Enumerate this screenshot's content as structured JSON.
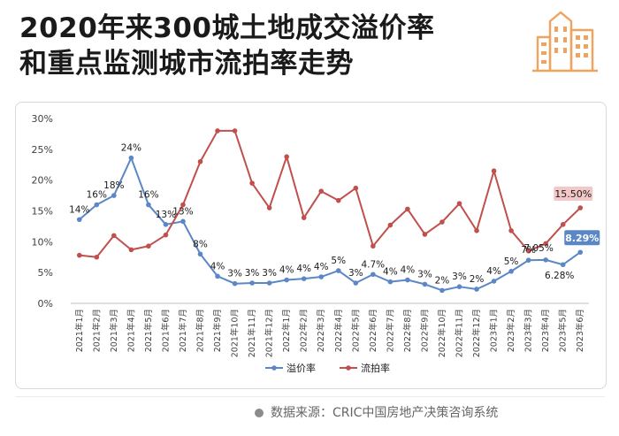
{
  "title": {
    "line1": "2020年来300城土地成交溢价率",
    "line2": "和重点监测城市流拍率走势"
  },
  "logo_icon": "city-buildings-icon",
  "colors": {
    "premium": "#5b87c6",
    "flow": "#c0504d",
    "logo": "#f0a35e",
    "axis_text": "#404040",
    "grid": "#e6e6e6",
    "highlight_premium_bg": "#5b87c6",
    "highlight_flow_bg": "#f2c9c8"
  },
  "source_text": "数据来源：CRIC中国房地产决策咨询系统",
  "chart_data": {
    "type": "line",
    "title": "",
    "xlabel": "",
    "ylabel": "",
    "ylim": [
      0,
      30
    ],
    "yticks": [
      "0%",
      "5%",
      "10%",
      "15%",
      "20%",
      "25%",
      "30%"
    ],
    "grid": false,
    "legend_position": "bottom",
    "categories": [
      "2021年1月",
      "2021年2月",
      "2021年3月",
      "2021年4月",
      "2021年5月",
      "2021年6月",
      "2021年7月",
      "2021年8月",
      "2021年9月",
      "2021年10月",
      "2021年11月",
      "2021年12月",
      "2022年1月",
      "2022年2月",
      "2022年3月",
      "2022年4月",
      "2022年5月",
      "2022年6月",
      "2022年7月",
      "2022年8月",
      "2022年9月",
      "2022年10月",
      "2022年11月",
      "2022年12月",
      "2023年1月",
      "2023年2月",
      "2023年3月",
      "2023年4月",
      "2023年5月",
      "2023年6月"
    ],
    "series": [
      {
        "name": "溢价率",
        "values": [
          13.6,
          16.0,
          17.5,
          23.6,
          16.0,
          12.8,
          13.3,
          8.0,
          4.4,
          3.2,
          3.3,
          3.3,
          3.8,
          4.0,
          4.3,
          5.3,
          3.3,
          4.7,
          3.5,
          3.8,
          3.1,
          2.1,
          2.7,
          2.3,
          3.6,
          5.2,
          7.0,
          7.05,
          6.28,
          8.29
        ],
        "labels": [
          "14%",
          "16%",
          "18%",
          "24%",
          "16%",
          "13%",
          "13%",
          "8%",
          "4%",
          "3%",
          "3%",
          "3%",
          "4%",
          "4%",
          "4%",
          "5%",
          "3%",
          "4.7%",
          "4%",
          "4%",
          "3%",
          "2%",
          "3%",
          "2%",
          "4%",
          "5%",
          "7%",
          "7.05%",
          "6.28%",
          "8.29%"
        ]
      },
      {
        "name": "流拍率",
        "values": [
          7.8,
          7.5,
          11.0,
          8.7,
          9.3,
          11.1,
          16.0,
          23.0,
          28.0,
          28.0,
          19.5,
          15.5,
          23.8,
          13.9,
          18.2,
          16.7,
          18.7,
          9.3,
          12.7,
          15.3,
          11.2,
          13.2,
          16.2,
          11.8,
          21.5,
          11.8,
          8.5,
          9.7,
          12.8,
          15.5
        ],
        "labels": [
          "",
          "",
          "",
          "",
          "",
          "",
          "",
          "",
          "",
          "",
          "",
          "",
          "",
          "",
          "",
          "",
          "",
          "",
          "",
          "",
          "",
          "",
          "",
          "",
          "",
          "",
          "",
          "",
          "",
          "15.50%"
        ]
      }
    ]
  }
}
